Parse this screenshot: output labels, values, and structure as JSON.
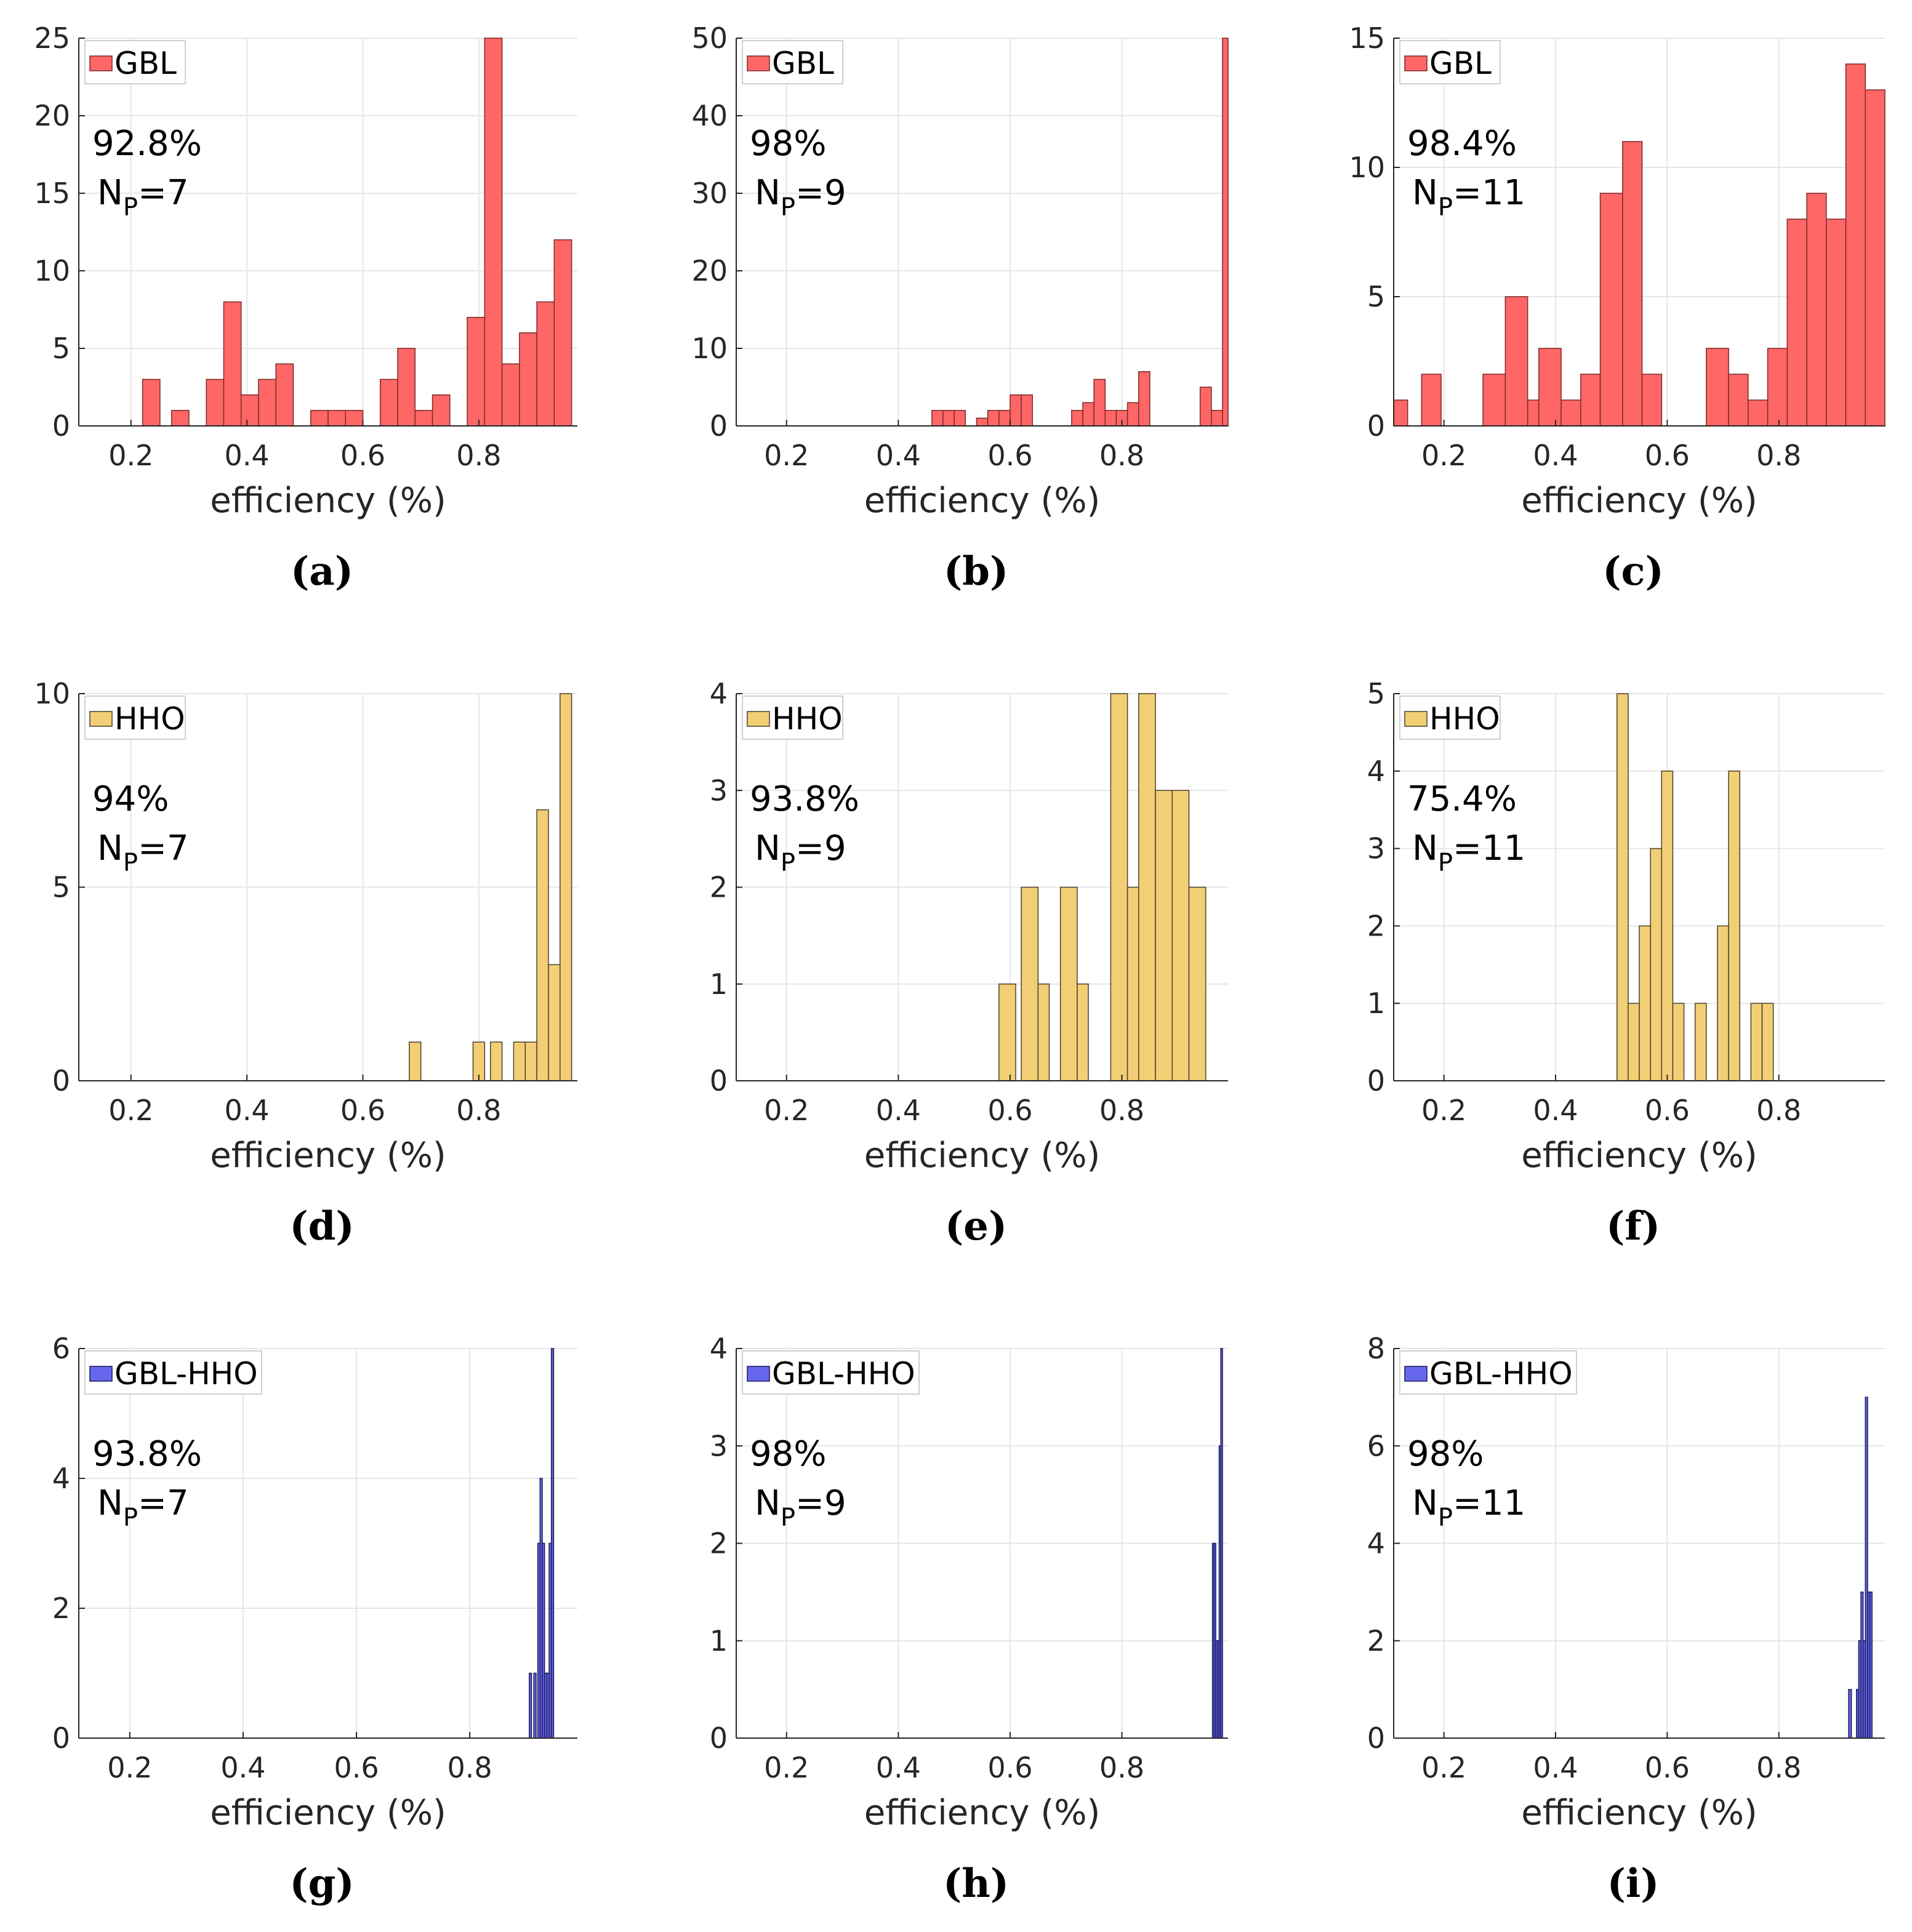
{
  "chart_data": [
    {
      "id": "a",
      "type": "bar",
      "caption": "(a)",
      "legend": "GBL",
      "color": "#ff6666",
      "annotation_pct": "92.8%",
      "annotation_np": "7",
      "xlabel": "efficiency (%)",
      "xticks": [
        "0.2",
        "0.4",
        "0.6",
        "0.8"
      ],
      "yticks": [
        "0",
        "5",
        "10",
        "15",
        "20",
        "25"
      ],
      "xlim": [
        0.11,
        0.97
      ],
      "ylim": [
        0,
        25
      ],
      "bins": [
        [
          0.22,
          0.25,
          3
        ],
        [
          0.27,
          0.3,
          1
        ],
        [
          0.33,
          0.36,
          3
        ],
        [
          0.36,
          0.39,
          8
        ],
        [
          0.39,
          0.42,
          2
        ],
        [
          0.42,
          0.45,
          3
        ],
        [
          0.45,
          0.48,
          4
        ],
        [
          0.51,
          0.54,
          1
        ],
        [
          0.54,
          0.57,
          1
        ],
        [
          0.57,
          0.6,
          1
        ],
        [
          0.63,
          0.66,
          3
        ],
        [
          0.66,
          0.69,
          5
        ],
        [
          0.69,
          0.72,
          1
        ],
        [
          0.72,
          0.75,
          2
        ],
        [
          0.78,
          0.81,
          7
        ],
        [
          0.81,
          0.84,
          25
        ],
        [
          0.84,
          0.87,
          4
        ],
        [
          0.87,
          0.9,
          6
        ],
        [
          0.9,
          0.93,
          8
        ],
        [
          0.93,
          0.96,
          12
        ]
      ]
    },
    {
      "id": "b",
      "type": "bar",
      "caption": "(b)",
      "legend": "GBL",
      "color": "#ff6666",
      "annotation_pct": "98%",
      "annotation_np": "9",
      "xlabel": "efficiency (%)",
      "xticks": [
        "0.2",
        "0.4",
        "0.6",
        "0.8"
      ],
      "yticks": [
        "0",
        "10",
        "20",
        "30",
        "40",
        "50"
      ],
      "xlim": [
        0.11,
        0.99
      ],
      "ylim": [
        0,
        50
      ],
      "bins": [
        [
          0.46,
          0.48,
          2
        ],
        [
          0.48,
          0.5,
          2
        ],
        [
          0.5,
          0.52,
          2
        ],
        [
          0.54,
          0.56,
          1
        ],
        [
          0.56,
          0.58,
          2
        ],
        [
          0.58,
          0.6,
          2
        ],
        [
          0.6,
          0.62,
          4
        ],
        [
          0.62,
          0.64,
          4
        ],
        [
          0.71,
          0.73,
          2
        ],
        [
          0.73,
          0.75,
          3
        ],
        [
          0.75,
          0.77,
          6
        ],
        [
          0.77,
          0.79,
          2
        ],
        [
          0.79,
          0.81,
          2
        ],
        [
          0.81,
          0.83,
          3
        ],
        [
          0.83,
          0.85,
          7
        ],
        [
          0.94,
          0.96,
          5
        ],
        [
          0.96,
          0.98,
          2
        ],
        [
          0.98,
          0.99,
          50
        ]
      ]
    },
    {
      "id": "c",
      "type": "bar",
      "caption": "(c)",
      "legend": "GBL",
      "color": "#ff6666",
      "annotation_pct": "98.4%",
      "annotation_np": "11",
      "xlabel": "efficiency (%)",
      "xticks": [
        "0.2",
        "0.4",
        "0.6",
        "0.8"
      ],
      "yticks": [
        "0",
        "5",
        "10",
        "15"
      ],
      "xlim": [
        0.11,
        0.99
      ],
      "ylim": [
        0,
        15
      ],
      "bins": [
        [
          0.11,
          0.135,
          1
        ],
        [
          0.16,
          0.195,
          2
        ],
        [
          0.27,
          0.31,
          2
        ],
        [
          0.31,
          0.35,
          5
        ],
        [
          0.35,
          0.37,
          1
        ],
        [
          0.37,
          0.41,
          3
        ],
        [
          0.41,
          0.445,
          1
        ],
        [
          0.445,
          0.48,
          2
        ],
        [
          0.48,
          0.52,
          9
        ],
        [
          0.52,
          0.555,
          11
        ],
        [
          0.555,
          0.59,
          2
        ],
        [
          0.67,
          0.71,
          3
        ],
        [
          0.71,
          0.745,
          2
        ],
        [
          0.745,
          0.78,
          1
        ],
        [
          0.78,
          0.815,
          3
        ],
        [
          0.815,
          0.85,
          8
        ],
        [
          0.85,
          0.885,
          9
        ],
        [
          0.885,
          0.92,
          8
        ],
        [
          0.92,
          0.955,
          14
        ],
        [
          0.955,
          0.99,
          13
        ]
      ]
    },
    {
      "id": "d",
      "type": "bar",
      "caption": "(d)",
      "legend": "HHO",
      "color": "#f2cf75",
      "annotation_pct": "94%",
      "annotation_np": "7",
      "xlabel": "efficiency (%)",
      "xticks": [
        "0.2",
        "0.4",
        "0.6",
        "0.8"
      ],
      "yticks": [
        "0",
        "5",
        "10"
      ],
      "xlim": [
        0.11,
        0.97
      ],
      "ylim": [
        0,
        10
      ],
      "bins": [
        [
          0.68,
          0.7,
          1
        ],
        [
          0.79,
          0.81,
          1
        ],
        [
          0.82,
          0.84,
          1
        ],
        [
          0.86,
          0.88,
          1
        ],
        [
          0.88,
          0.9,
          1
        ],
        [
          0.9,
          0.92,
          7
        ],
        [
          0.92,
          0.94,
          3
        ],
        [
          0.94,
          0.96,
          10
        ]
      ]
    },
    {
      "id": "e",
      "type": "bar",
      "caption": "(e)",
      "legend": "HHO",
      "color": "#f2cf75",
      "annotation_pct": "93.8%",
      "annotation_np": "9",
      "xlabel": "efficiency (%)",
      "xticks": [
        "0.2",
        "0.4",
        "0.6",
        "0.8"
      ],
      "yticks": [
        "0",
        "1",
        "2",
        "3",
        "4"
      ],
      "xlim": [
        0.11,
        0.99
      ],
      "ylim": [
        0,
        4
      ],
      "bins": [
        [
          0.58,
          0.61,
          1
        ],
        [
          0.62,
          0.65,
          2
        ],
        [
          0.65,
          0.67,
          1
        ],
        [
          0.69,
          0.72,
          2
        ],
        [
          0.72,
          0.74,
          1
        ],
        [
          0.78,
          0.81,
          4
        ],
        [
          0.81,
          0.83,
          2
        ],
        [
          0.83,
          0.86,
          4
        ],
        [
          0.86,
          0.89,
          3
        ],
        [
          0.89,
          0.92,
          3
        ],
        [
          0.92,
          0.95,
          2
        ]
      ]
    },
    {
      "id": "f",
      "type": "bar",
      "caption": "(f)",
      "legend": "HHO",
      "color": "#f2cf75",
      "annotation_pct": "75.4%",
      "annotation_np": "11",
      "xlabel": "efficiency (%)",
      "xticks": [
        "0.2",
        "0.4",
        "0.6",
        "0.8"
      ],
      "yticks": [
        "0",
        "1",
        "2",
        "3",
        "4",
        "5"
      ],
      "xlim": [
        0.11,
        0.99
      ],
      "ylim": [
        0,
        5
      ],
      "bins": [
        [
          0.51,
          0.53,
          5
        ],
        [
          0.53,
          0.55,
          1
        ],
        [
          0.55,
          0.57,
          2
        ],
        [
          0.57,
          0.59,
          3
        ],
        [
          0.59,
          0.61,
          4
        ],
        [
          0.61,
          0.63,
          1
        ],
        [
          0.65,
          0.67,
          1
        ],
        [
          0.69,
          0.71,
          2
        ],
        [
          0.71,
          0.73,
          4
        ],
        [
          0.75,
          0.77,
          1
        ],
        [
          0.77,
          0.79,
          1
        ]
      ]
    },
    {
      "id": "g",
      "type": "bar",
      "caption": "(g)",
      "legend": "GBL-HHO",
      "color": "#6666ee",
      "annotation_pct": "93.8%",
      "annotation_np": "7",
      "xlabel": "efficiency (%)",
      "xticks": [
        "0.2",
        "0.4",
        "0.6",
        "0.8"
      ],
      "yticks": [
        "0",
        "2",
        "4",
        "6"
      ],
      "xlim": [
        0.11,
        0.99
      ],
      "ylim": [
        0,
        6
      ],
      "bins": [
        [
          0.905,
          0.909,
          1
        ],
        [
          0.913,
          0.917,
          1
        ],
        [
          0.92,
          0.924,
          3
        ],
        [
          0.924,
          0.928,
          4
        ],
        [
          0.928,
          0.932,
          3
        ],
        [
          0.932,
          0.936,
          1
        ],
        [
          0.936,
          0.94,
          1
        ],
        [
          0.94,
          0.944,
          3
        ],
        [
          0.944,
          0.948,
          6
        ]
      ]
    },
    {
      "id": "h",
      "type": "bar",
      "caption": "(h)",
      "legend": "GBL-HHO",
      "color": "#6666ee",
      "annotation_pct": "98%",
      "annotation_np": "9",
      "xlabel": "efficiency (%)",
      "xticks": [
        "0.2",
        "0.4",
        "0.6",
        "0.8"
      ],
      "yticks": [
        "0",
        "1",
        "2",
        "3",
        "4"
      ],
      "xlim": [
        0.11,
        0.99
      ],
      "ylim": [
        0,
        4
      ],
      "bins": [
        [
          0.962,
          0.965,
          2
        ],
        [
          0.965,
          0.968,
          2
        ],
        [
          0.968,
          0.971,
          1
        ],
        [
          0.971,
          0.974,
          1
        ],
        [
          0.974,
          0.977,
          3
        ],
        [
          0.977,
          0.98,
          4
        ]
      ]
    },
    {
      "id": "i",
      "type": "bar",
      "caption": "(i)",
      "legend": "GBL-HHO",
      "color": "#6666ee",
      "annotation_pct": "98%",
      "annotation_np": "11",
      "xlabel": "efficiency (%)",
      "xticks": [
        "0.2",
        "0.4",
        "0.6",
        "0.8"
      ],
      "yticks": [
        "0",
        "2",
        "4",
        "6",
        "8"
      ],
      "xlim": [
        0.11,
        0.99
      ],
      "ylim": [
        0,
        8
      ],
      "bins": [
        [
          0.925,
          0.93,
          1
        ],
        [
          0.939,
          0.943,
          1
        ],
        [
          0.943,
          0.947,
          2
        ],
        [
          0.947,
          0.951,
          3
        ],
        [
          0.951,
          0.955,
          2
        ],
        [
          0.955,
          0.959,
          7
        ],
        [
          0.959,
          0.963,
          3
        ],
        [
          0.963,
          0.967,
          3
        ]
      ]
    }
  ]
}
